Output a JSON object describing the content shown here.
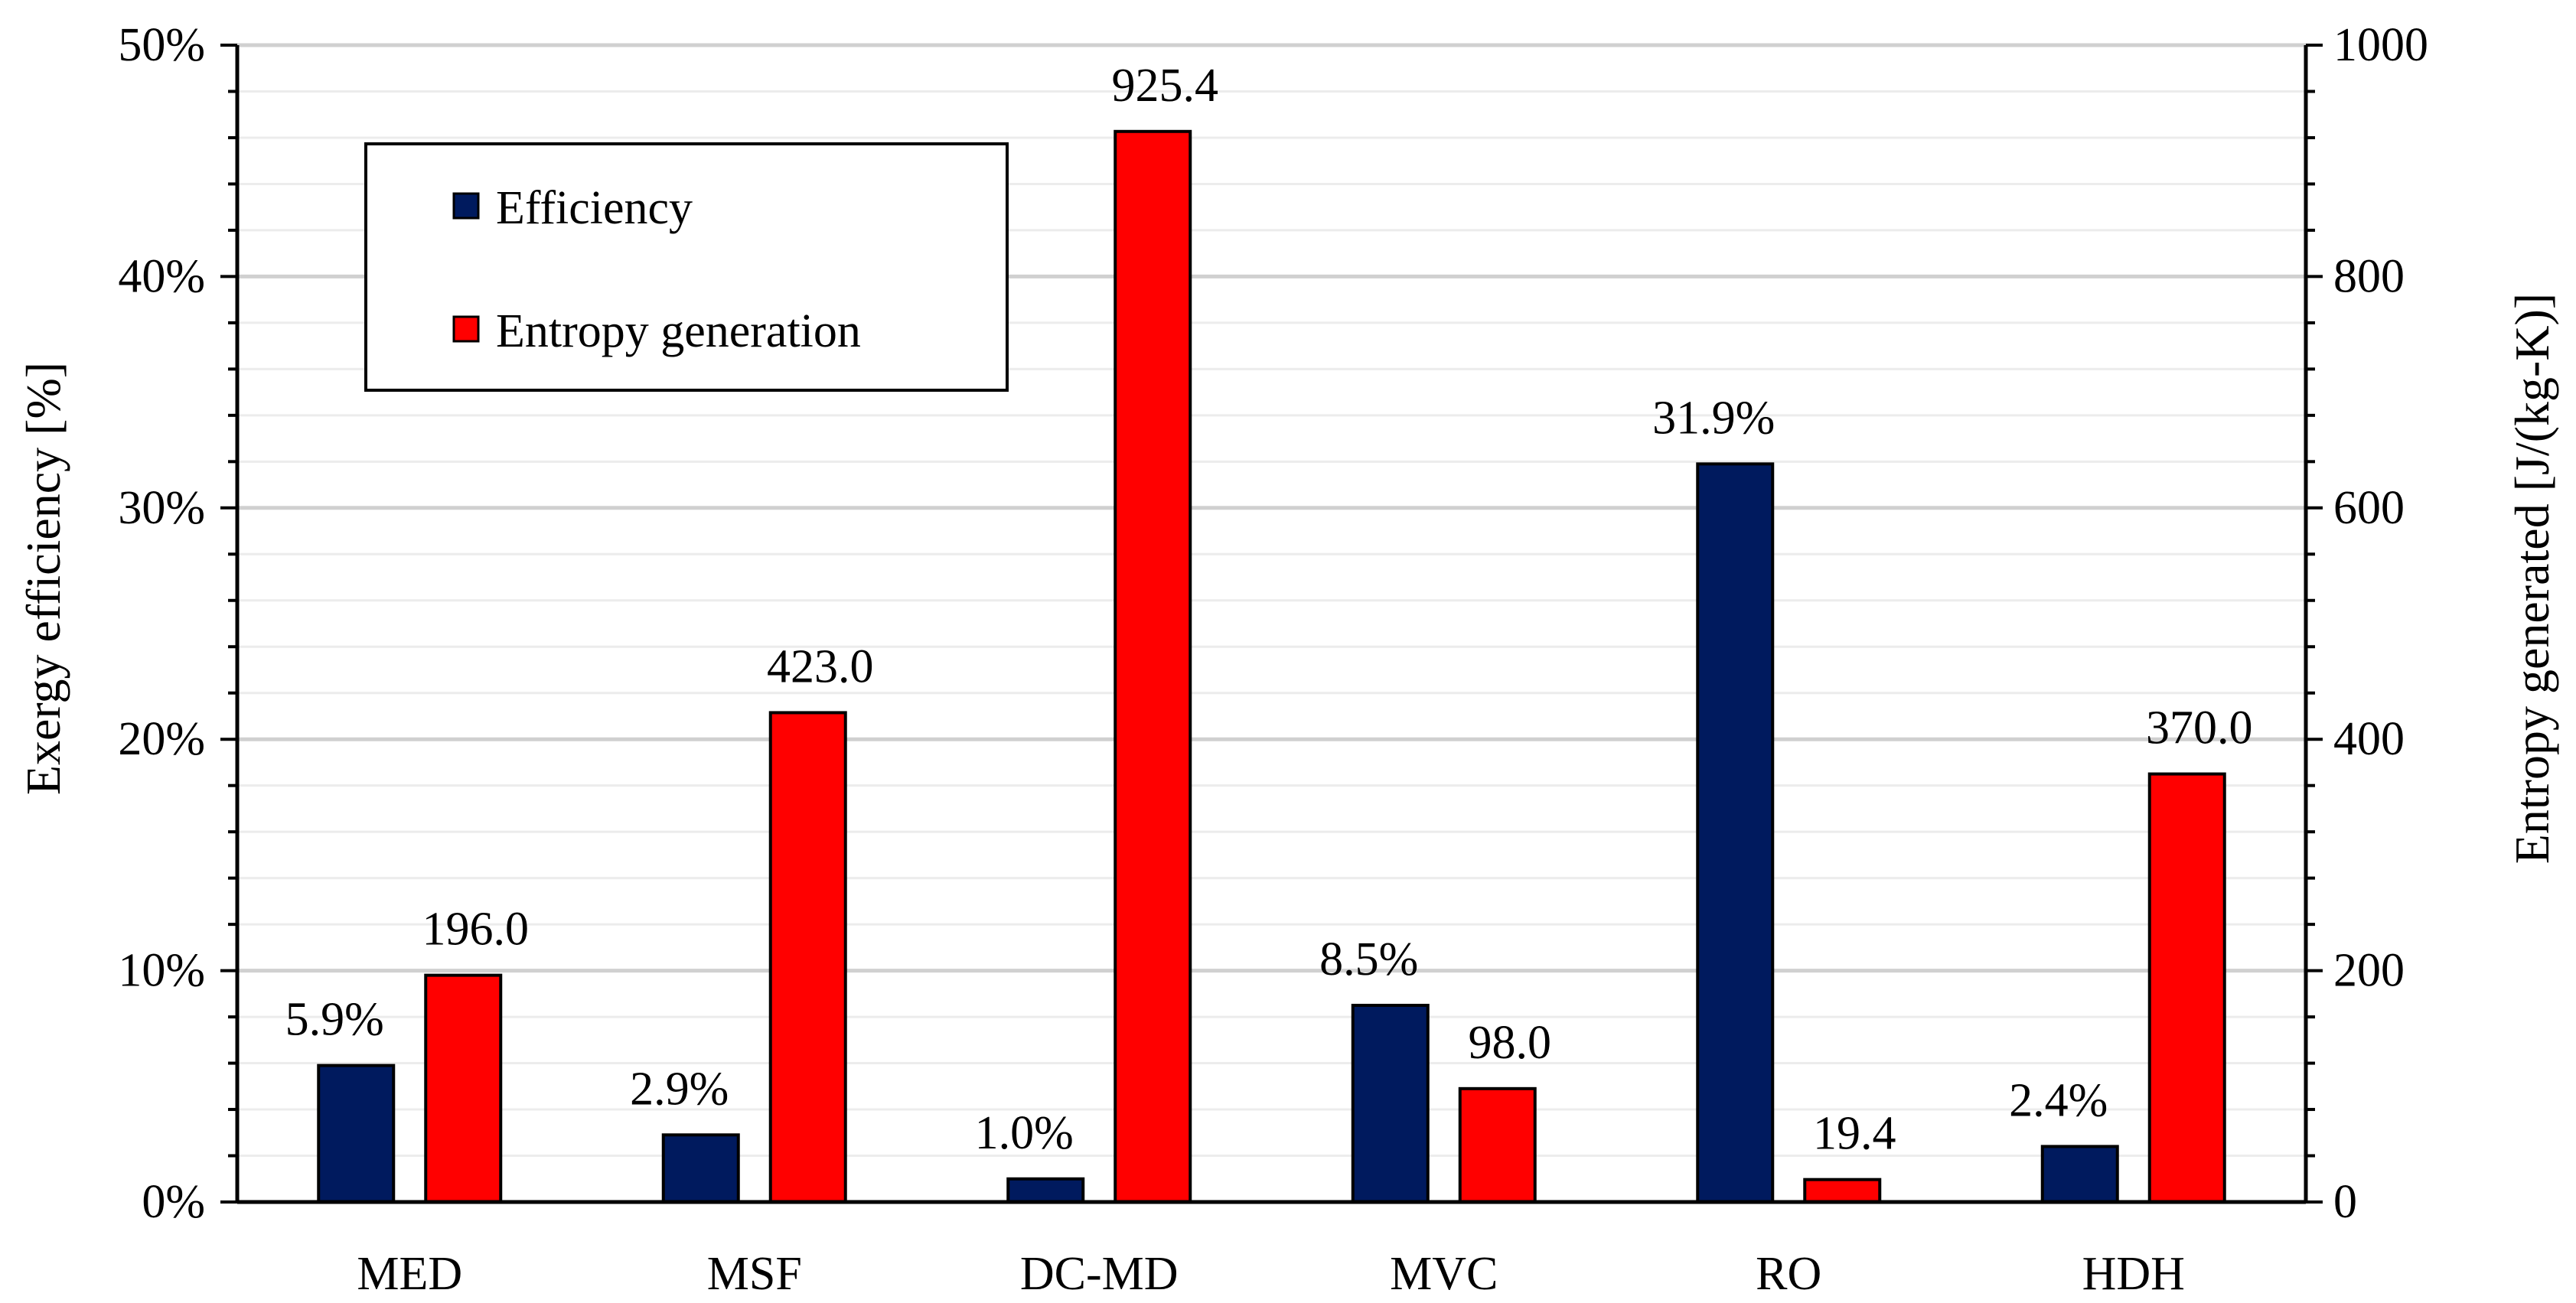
{
  "chart_data": {
    "type": "bar",
    "categories": [
      "MED",
      "MSF",
      "DC-MD",
      "MVC",
      "RO",
      "HDH"
    ],
    "series": [
      {
        "name": "Efficiency",
        "axis": "left",
        "unit": "%",
        "color": "#001a5e",
        "values": [
          5.9,
          2.9,
          1.0,
          8.5,
          31.9,
          2.4
        ],
        "labels": [
          "5.9%",
          "2.9%",
          "1.0%",
          "8.5%",
          "31.9%",
          "2.4%"
        ]
      },
      {
        "name": "Entropy generation",
        "axis": "right",
        "unit": "J/(kg-K)",
        "color": "#ff0000",
        "values": [
          196.0,
          423.0,
          925.4,
          98.0,
          19.4,
          370.0
        ],
        "labels": [
          "196.0",
          "423.0",
          "925.4",
          "98.0",
          "19.4",
          "370.0"
        ]
      }
    ],
    "ylabel": "Exergy efficiency [%]",
    "y2label": "Entropy generated [J/(kg-K)]",
    "ylim": [
      0,
      50
    ],
    "y2lim": [
      0,
      1000
    ],
    "yticks": [
      "0%",
      "10%",
      "20%",
      "30%",
      "40%",
      "50%"
    ],
    "y2ticks": [
      "0",
      "200",
      "400",
      "600",
      "800",
      "1000"
    ],
    "legend": {
      "position": "top-left",
      "entries": [
        "Efficiency",
        "Entropy generation"
      ]
    },
    "grid": true
  }
}
